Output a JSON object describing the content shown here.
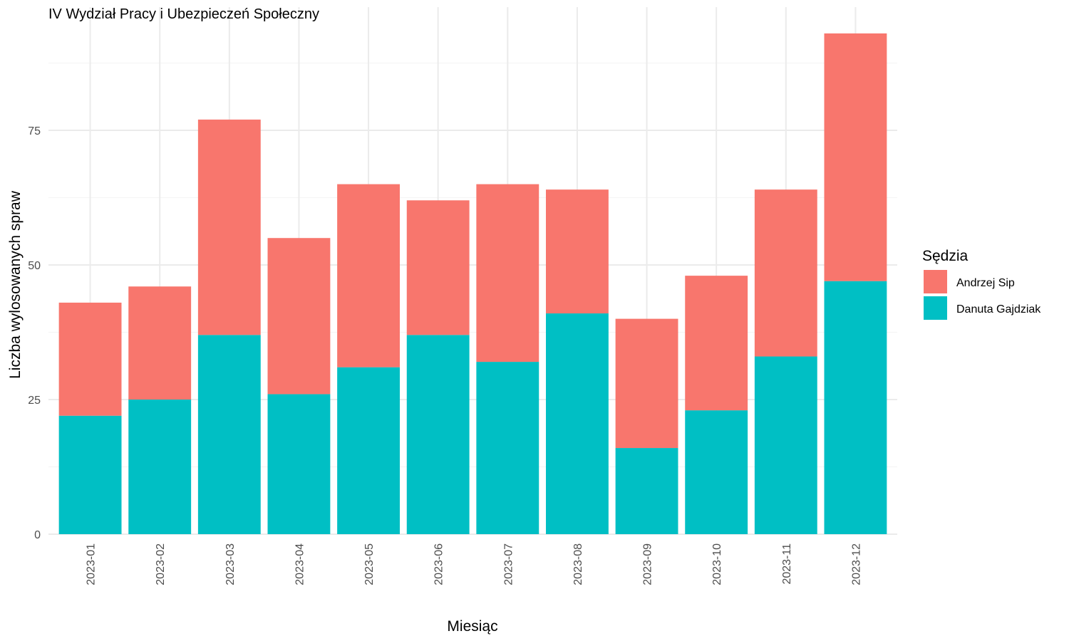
{
  "chart_data": {
    "type": "bar",
    "stacked": true,
    "title": "IV Wydział Pracy i Ubezpieczeń Społeczny",
    "xlabel": "Miesiąc",
    "ylabel": "Liczba wylosowanych spraw",
    "ylim": [
      0,
      95
    ],
    "yticks": [
      0,
      25,
      50,
      75
    ],
    "grid": true,
    "legend_title": "Sędzia",
    "legend_position": "right",
    "categories": [
      "2023-01",
      "2023-02",
      "2023-03",
      "2023-04",
      "2023-05",
      "2023-06",
      "2023-07",
      "2023-08",
      "2023-09",
      "2023-10",
      "2023-11",
      "2023-12"
    ],
    "series": [
      {
        "name": "Danuta Gajdziak",
        "color": "#00BFC4",
        "values": [
          22,
          25,
          37,
          26,
          31,
          37,
          32,
          41,
          16,
          23,
          33,
          47
        ]
      },
      {
        "name": "Andrzej Sip",
        "color": "#F8766D",
        "values": [
          21,
          21,
          40,
          29,
          34,
          25,
          33,
          23,
          24,
          25,
          31,
          46
        ]
      }
    ],
    "legend_order": [
      "Andrzej Sip",
      "Danuta Gajdziak"
    ]
  }
}
